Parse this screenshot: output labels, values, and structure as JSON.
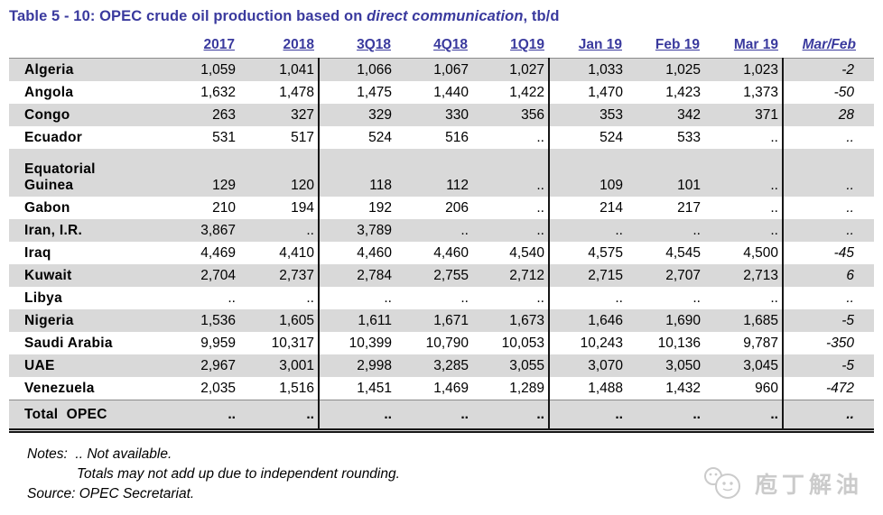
{
  "title": {
    "prefix": "Table 5 - 10: OPEC crude oil production based on ",
    "emphasis": "direct communication",
    "suffix": ", tb/d"
  },
  "table": {
    "columns": [
      "2017",
      "2018",
      "3Q18",
      "4Q18",
      "1Q19",
      "Jan 19",
      "Feb 19",
      "Mar 19",
      "Mar/Feb"
    ],
    "rows": [
      {
        "country": "Algeria",
        "values": [
          "1,059",
          "1,041",
          "1,066",
          "1,067",
          "1,027",
          "1,033",
          "1,025",
          "1,023",
          "-2"
        ]
      },
      {
        "country": "Angola",
        "values": [
          "1,632",
          "1,478",
          "1,475",
          "1,440",
          "1,422",
          "1,470",
          "1,423",
          "1,373",
          "-50"
        ]
      },
      {
        "country": "Congo",
        "values": [
          "263",
          "327",
          "329",
          "330",
          "356",
          "353",
          "342",
          "371",
          "28"
        ]
      },
      {
        "country": "Ecuador",
        "values": [
          "531",
          "517",
          "524",
          "516",
          "..",
          "524",
          "533",
          "..",
          ".."
        ]
      },
      {
        "country": "Equatorial\nGuinea",
        "values": [
          "129",
          "120",
          "118",
          "112",
          "..",
          "109",
          "101",
          "..",
          ".."
        ]
      },
      {
        "country": "Gabon",
        "values": [
          "210",
          "194",
          "192",
          "206",
          "..",
          "214",
          "217",
          "..",
          ".."
        ]
      },
      {
        "country": "Iran, I.R.",
        "values": [
          "3,867",
          "..",
          "3,789",
          "..",
          "..",
          "..",
          "..",
          "..",
          ".."
        ]
      },
      {
        "country": "Iraq",
        "values": [
          "4,469",
          "4,410",
          "4,460",
          "4,460",
          "4,540",
          "4,575",
          "4,545",
          "4,500",
          "-45"
        ]
      },
      {
        "country": "Kuwait",
        "values": [
          "2,704",
          "2,737",
          "2,784",
          "2,755",
          "2,712",
          "2,715",
          "2,707",
          "2,713",
          "6"
        ]
      },
      {
        "country": "Libya",
        "values": [
          "..",
          "..",
          "..",
          "..",
          "..",
          "..",
          "..",
          "..",
          ".."
        ]
      },
      {
        "country": "Nigeria",
        "values": [
          "1,536",
          "1,605",
          "1,611",
          "1,671",
          "1,673",
          "1,646",
          "1,690",
          "1,685",
          "-5"
        ]
      },
      {
        "country": "Saudi Arabia",
        "values": [
          "9,959",
          "10,317",
          "10,399",
          "10,790",
          "10,053",
          "10,243",
          "10,136",
          "9,787",
          "-350"
        ]
      },
      {
        "country": "UAE",
        "values": [
          "2,967",
          "3,001",
          "2,998",
          "3,285",
          "3,055",
          "3,070",
          "3,050",
          "3,045",
          "-5"
        ]
      },
      {
        "country": "Venezuela",
        "values": [
          "2,035",
          "1,516",
          "1,451",
          "1,469",
          "1,289",
          "1,488",
          "1,432",
          "960",
          "-472"
        ]
      }
    ],
    "total": {
      "label": "Total  OPEC",
      "values": [
        "..",
        "..",
        "..",
        "..",
        "..",
        "..",
        "..",
        "..",
        ".."
      ]
    }
  },
  "notes": {
    "line1": "Notes:  .. Not available.",
    "line2": "Totals may not add up due to independent rounding.",
    "line3": "Source: OPEC Secretariat."
  },
  "watermark": {
    "text": "庖丁解油"
  },
  "colors": {
    "title_blue": "#3a3a9e",
    "stripe_gray": "#d9d9d9",
    "border_black": "#161616",
    "watermark_gray": "#cbcbcb"
  }
}
